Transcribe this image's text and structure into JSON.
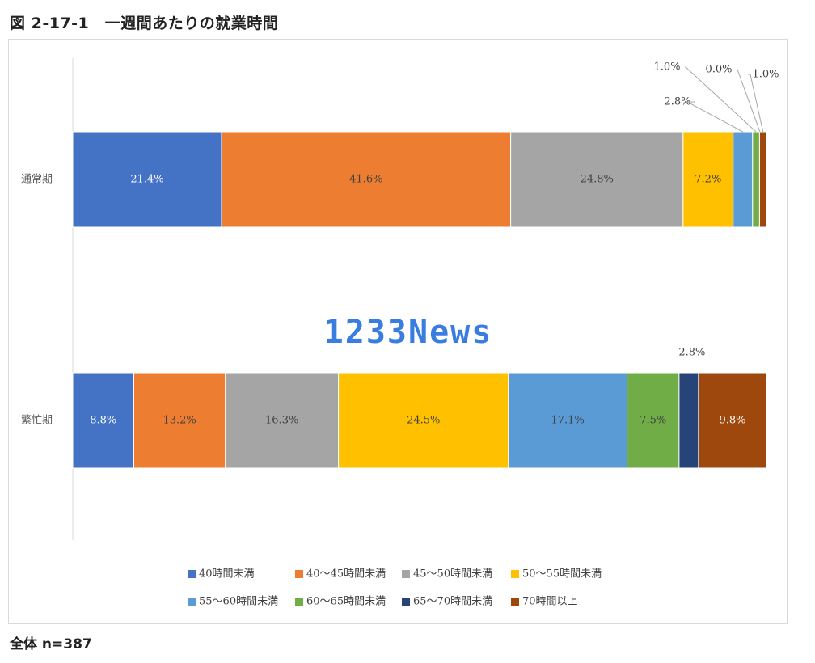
{
  "title": "図 2-17-1　一週間あたりの就業時間",
  "footer": "全体  n=387",
  "watermark": "1233News",
  "chart_data": {
    "type": "bar",
    "orientation": "horizontal",
    "stacked": "percent",
    "categories": [
      "通常期",
      "繁忙期"
    ],
    "series": [
      {
        "name": "40時間未満",
        "color": "#4472C4",
        "values": [
          21.4,
          8.8
        ]
      },
      {
        "name": "40～45時間未満",
        "color": "#ED7D31",
        "values": [
          41.6,
          13.2
        ]
      },
      {
        "name": "45～50時間未満",
        "color": "#A5A5A5",
        "values": [
          24.8,
          16.3
        ]
      },
      {
        "name": "50～55時間未満",
        "color": "#FFC000",
        "values": [
          7.2,
          24.5
        ]
      },
      {
        "name": "55～60時間未満",
        "color": "#5B9BD5",
        "values": [
          2.8,
          17.1
        ]
      },
      {
        "name": "60～65時間未満",
        "color": "#70AD47",
        "values": [
          1.0,
          7.5
        ]
      },
      {
        "name": "65～70時間未満",
        "color": "#264478",
        "values": [
          0.0,
          2.8
        ]
      },
      {
        "name": "70時間以上",
        "color": "#9E480E",
        "values": [
          1.0,
          9.8
        ]
      }
    ],
    "data_labels": [
      [
        "21.4%",
        "41.6%",
        "24.8%",
        "7.2%",
        "2.8%",
        "1.0%",
        "0.0%",
        "1.0%"
      ],
      [
        "8.8%",
        "13.2%",
        "16.3%",
        "24.5%",
        "17.1%",
        "7.5%",
        "2.8%",
        "9.8%"
      ]
    ],
    "legend_position": "bottom",
    "grid": false
  }
}
